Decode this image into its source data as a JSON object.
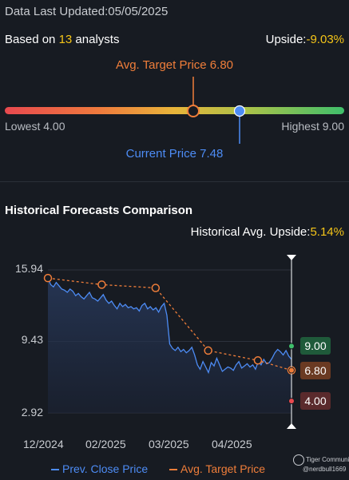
{
  "header": {
    "updated": "Data Last Updated:05/05/2025",
    "based_prefix": "Based on ",
    "analyst_count": "13",
    "based_suffix": " analysts",
    "upside_label": "Upside:",
    "upside_value": "-9.03%"
  },
  "target": {
    "avg_label": "Avg. Target Price 6.80",
    "current_label": "Current Price 7.48",
    "lowest": "Lowest 4.00",
    "highest": "Highest 9.00",
    "low": 4.0,
    "high": 9.0,
    "avg": 6.8,
    "current": 7.48
  },
  "history": {
    "title": "Historical Forecasts Comparison",
    "upside_label": "Historical Avg. Upside:",
    "upside_value": "5.14%"
  },
  "chart_data": {
    "type": "line",
    "y_ticks": [
      "15.94",
      "9.43",
      "2.92"
    ],
    "ylim": [
      2.92,
      15.94
    ],
    "x_ticks": [
      "12/2024",
      "02/2025",
      "03/2025",
      "04/2025"
    ],
    "series": [
      {
        "name": "Prev. Close Price",
        "color": "#4d8cf5",
        "values": [
          15.2,
          14.6,
          14.4,
          14.8,
          14.5,
          14.2,
          14.1,
          13.9,
          14.2,
          14.0,
          13.6,
          13.8,
          13.5,
          13.3,
          13.6,
          13.9,
          13.4,
          13.3,
          13.1,
          13.4,
          13.7,
          13.2,
          12.9,
          13.1,
          12.7,
          12.4,
          12.9,
          12.6,
          12.8,
          12.5,
          12.6,
          12.4,
          12.5,
          12.2,
          12.7,
          12.9,
          12.4,
          12.6,
          12.3,
          12.5,
          12.1,
          12.6,
          12.9,
          11.8,
          9.2,
          8.8,
          8.6,
          8.9,
          8.5,
          8.7,
          8.4,
          8.6,
          8.9,
          8.2,
          7.3,
          6.9,
          7.6,
          7.1,
          6.6,
          7.5,
          7.2,
          7.9,
          7.3,
          6.7,
          6.9,
          7.1,
          7.0,
          6.8,
          7.3,
          7.6,
          7.0,
          7.2,
          7.4,
          7.1,
          7.3,
          6.9,
          7.6,
          7.3,
          7.8,
          7.4,
          7.5,
          7.9,
          8.4,
          8.7,
          8.5,
          8.2,
          8.6,
          8.1,
          7.8
        ]
      },
      {
        "name": "Avg. Target Price",
        "color": "#f07e3a",
        "points": [
          [
            0,
            15.2
          ],
          [
            0.221,
            14.6
          ],
          [
            0.442,
            14.3
          ],
          [
            0.658,
            8.6
          ],
          [
            0.862,
            7.7
          ],
          [
            1.0,
            6.8
          ]
        ]
      }
    ],
    "end_badges": [
      {
        "text": "9.00",
        "value": 9.0,
        "bg": "#1f5a3a",
        "fg": "#ffffff",
        "dot": "#3fbf6b"
      },
      {
        "text": "6.80",
        "value": 6.8,
        "bg": "#6a3a22",
        "fg": "#ffffff",
        "dot": "#f07e3a"
      },
      {
        "text": "4.00",
        "value": 4.0,
        "bg": "#5a2a2c",
        "fg": "#ffffff",
        "dot": "#e8494f"
      }
    ],
    "legend": [
      {
        "label": "Prev. Close Price",
        "color": "#4d8cf5"
      },
      {
        "label": "Avg. Target Price",
        "color": "#f07e3a"
      }
    ]
  },
  "watermark": {
    "brand": "Tiger Community",
    "user": "@nerdbull1669"
  }
}
